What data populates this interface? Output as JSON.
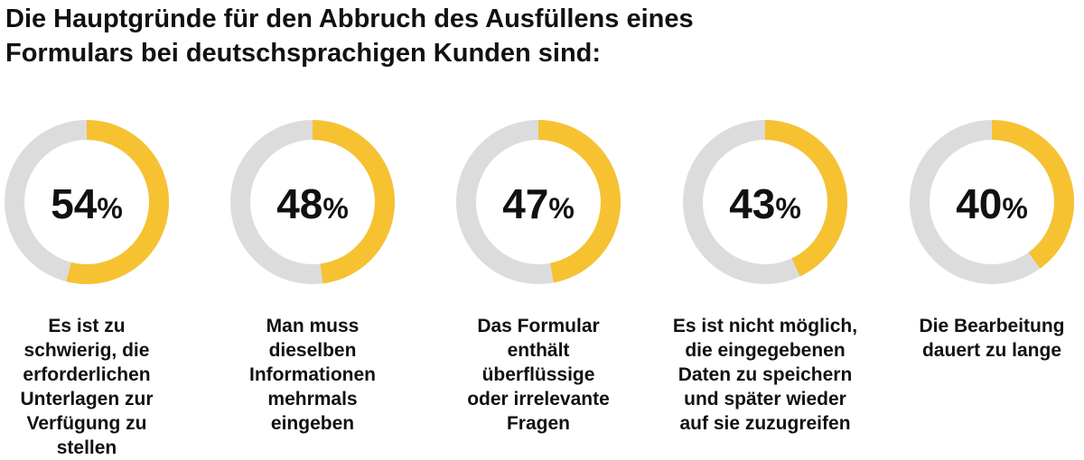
{
  "title_lines": [
    "Die Hauptgründe für den Abbruch des Ausfüllens eines",
    "Formulars bei deutschsprachigen Kunden sind:"
  ],
  "chart_data": {
    "type": "pie",
    "subtype": "donut",
    "title": "Die Hauptgründe für den Abbruch des Ausfüllens eines Formulars bei deutschsprachigen Kunden sind:",
    "unit": "%",
    "items": [
      {
        "value": 54,
        "label": "54",
        "caption": [
          "Es ist zu",
          "schwierig, die",
          "erforderlichen",
          "Unterlagen zur",
          "Verfügung zu",
          "stellen"
        ]
      },
      {
        "value": 48,
        "label": "48",
        "caption": [
          "Man muss",
          "dieselben",
          "Informationen",
          "mehrmals",
          "eingeben"
        ]
      },
      {
        "value": 47,
        "label": "47",
        "caption": [
          "Das Formular",
          "enthält",
          "überflüssige",
          "oder irrelevante",
          "Fragen"
        ]
      },
      {
        "value": 43,
        "label": "43",
        "caption": [
          "Es ist nicht möglich,",
          "die eingegebenen",
          "Daten zu speichern",
          "und später wieder",
          "auf sie zuzugreifen"
        ]
      },
      {
        "value": 40,
        "label": "40",
        "caption": [
          "Die Bearbeitung",
          "dauert zu lange"
        ]
      }
    ],
    "colors": {
      "filled": "#F6C232",
      "track": "#DCDCDC"
    }
  }
}
